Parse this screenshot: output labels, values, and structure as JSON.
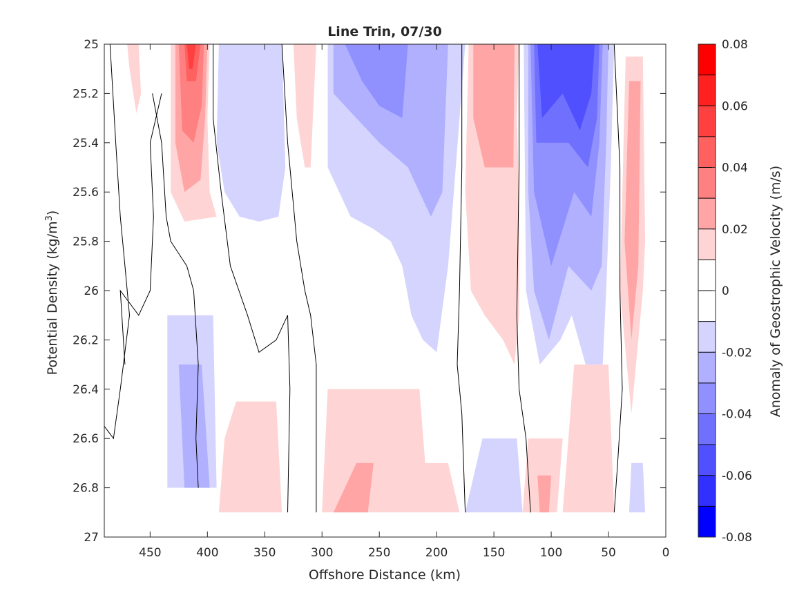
{
  "chart_data": {
    "type": "contour",
    "title": "Line Trin, 07/30",
    "xlabel": "Offshore Distance (km)",
    "ylabel_main": "Potential Density (kg/m",
    "ylabel_sup": "3",
    "ylabel_close": ")",
    "x_reversed": true,
    "xlim": [
      0,
      490
    ],
    "ylim": [
      25,
      27
    ],
    "y_reversed": true,
    "grid": false,
    "x_ticks": [
      450,
      400,
      350,
      300,
      250,
      200,
      150,
      100,
      50,
      0
    ],
    "x_tick_labels": [
      "450",
      "400",
      "350",
      "300",
      "250",
      "200",
      "150",
      "100",
      "50",
      "0"
    ],
    "y_ticks": [
      25,
      25.2,
      25.4,
      25.6,
      25.8,
      26,
      26.2,
      26.4,
      26.6,
      26.8,
      27
    ],
    "y_tick_labels": [
      "25",
      "25.2",
      "25.4",
      "25.6",
      "25.8",
      "26",
      "26.2",
      "26.4",
      "26.6",
      "26.8",
      "27"
    ],
    "colorbar": {
      "label": "Anomaly of Geostrophic Velocity (m/s)",
      "range": [
        -0.08,
        0.08
      ],
      "ticks": [
        0.08,
        0.06,
        0.04,
        0.02,
        0,
        -0.02,
        -0.04,
        -0.06,
        -0.08
      ],
      "tick_labels": [
        "0.08",
        "0.06",
        "0.04",
        "0.02",
        "0",
        "-0.02",
        "-0.04",
        "-0.06",
        "-0.08"
      ],
      "levels": [
        0.08,
        0.07,
        0.06,
        0.05,
        0.04,
        0.03,
        0.02,
        0.01,
        0,
        -0.01,
        -0.02,
        -0.03,
        -0.04,
        -0.05,
        -0.06,
        -0.07,
        -0.08
      ],
      "colors_top_to_bottom": [
        "#ff0000",
        "#ff2020",
        "#ff4040",
        "#ff6060",
        "#ff8080",
        "#ffa5a5",
        "#ffd4d4",
        "#ffffff",
        "#ffffff",
        "#d4d4ff",
        "#b0b0ff",
        "#9090ff",
        "#7070ff",
        "#5050ff",
        "#3030ff",
        "#0000ff"
      ],
      "colormap": "red-white-blue"
    },
    "fill_regions": [
      {
        "level": 0.015,
        "color": "#ffd4d4",
        "points": [
          [
            470,
            25
          ],
          [
            460,
            25
          ],
          [
            458,
            25.2
          ],
          [
            462,
            25.28
          ],
          [
            468,
            25.1
          ]
        ]
      },
      {
        "level": 0.015,
        "color": "#ffd4d4",
        "points": [
          [
            432,
            25
          ],
          [
            398,
            25
          ],
          [
            400,
            25.3
          ],
          [
            398,
            25.6
          ],
          [
            392,
            25.7
          ],
          [
            420,
            25.72
          ],
          [
            432,
            25.6
          ]
        ]
      },
      {
        "level": 0.03,
        "color": "#ffa5a5",
        "points": [
          [
            428,
            25
          ],
          [
            400,
            25
          ],
          [
            402,
            25.3
          ],
          [
            406,
            25.55
          ],
          [
            420,
            25.6
          ],
          [
            428,
            25.4
          ]
        ]
      },
      {
        "level": 0.045,
        "color": "#ff8080",
        "points": [
          [
            425,
            25
          ],
          [
            403,
            25
          ],
          [
            405,
            25.25
          ],
          [
            412,
            25.4
          ],
          [
            422,
            25.35
          ]
        ]
      },
      {
        "level": 0.06,
        "color": "#ff6060",
        "points": [
          [
            420,
            25
          ],
          [
            406,
            25
          ],
          [
            410,
            25.15
          ],
          [
            418,
            25.15
          ]
        ]
      },
      {
        "level": 0.07,
        "color": "#ff4040",
        "points": [
          [
            418,
            25
          ],
          [
            410,
            25
          ],
          [
            413,
            25.1
          ],
          [
            416,
            25.1
          ]
        ]
      },
      {
        "level": -0.015,
        "color": "#d4d4ff",
        "points": [
          [
            390,
            25
          ],
          [
            335,
            25
          ],
          [
            332,
            25.5
          ],
          [
            338,
            25.7
          ],
          [
            355,
            25.72
          ],
          [
            372,
            25.7
          ],
          [
            385,
            25.6
          ],
          [
            392,
            25.4
          ]
        ]
      },
      {
        "level": 0.015,
        "color": "#ffd4d4",
        "points": [
          [
            325,
            25
          ],
          [
            305,
            25
          ],
          [
            308,
            25.3
          ],
          [
            310,
            25.5
          ],
          [
            315,
            25.5
          ],
          [
            322,
            25.3
          ]
        ]
      },
      {
        "level": -0.015,
        "color": "#d4d4ff",
        "points": [
          [
            295,
            25
          ],
          [
            175,
            25
          ],
          [
            185,
            25.6
          ],
          [
            190,
            25.9
          ],
          [
            200,
            26.25
          ],
          [
            212,
            26.2
          ],
          [
            222,
            26.1
          ],
          [
            230,
            25.9
          ],
          [
            240,
            25.8
          ],
          [
            255,
            25.75
          ],
          [
            275,
            25.7
          ],
          [
            295,
            25.5
          ]
        ]
      },
      {
        "level": -0.03,
        "color": "#b0b0ff",
        "points": [
          [
            290,
            25
          ],
          [
            190,
            25
          ],
          [
            195,
            25.6
          ],
          [
            205,
            25.7
          ],
          [
            225,
            25.5
          ],
          [
            250,
            25.4
          ],
          [
            270,
            25.3
          ],
          [
            290,
            25.2
          ]
        ]
      },
      {
        "level": -0.045,
        "color": "#9090ff",
        "points": [
          [
            280,
            25
          ],
          [
            225,
            25
          ],
          [
            230,
            25.3
          ],
          [
            250,
            25.25
          ],
          [
            265,
            25.15
          ]
        ]
      },
      {
        "level": 0.015,
        "color": "#ffd4d4",
        "points": [
          [
            172,
            25
          ],
          [
            128,
            25
          ],
          [
            130,
            25.3
          ],
          [
            128,
            25.6
          ],
          [
            128,
            26.1
          ],
          [
            132,
            26.3
          ],
          [
            142,
            26.2
          ],
          [
            158,
            26.1
          ],
          [
            170,
            26.0
          ],
          [
            175,
            25.6
          ]
        ]
      },
      {
        "level": 0.03,
        "color": "#ffa5a5",
        "points": [
          [
            168,
            25
          ],
          [
            132,
            25
          ],
          [
            133,
            25.5
          ],
          [
            145,
            25.5
          ],
          [
            158,
            25.5
          ],
          [
            168,
            25.3
          ]
        ]
      },
      {
        "level": -0.015,
        "color": "#d4d4ff",
        "points": [
          [
            124,
            25
          ],
          [
            45,
            25
          ],
          [
            48,
            25.5
          ],
          [
            52,
            26.0
          ],
          [
            55,
            26.3
          ],
          [
            70,
            26.3
          ],
          [
            82,
            26.1
          ],
          [
            92,
            26.2
          ],
          [
            110,
            26.3
          ],
          [
            122,
            26.0
          ]
        ]
      },
      {
        "level": -0.03,
        "color": "#b0b0ff",
        "points": [
          [
            120,
            25
          ],
          [
            50,
            25
          ],
          [
            52,
            25.4
          ],
          [
            56,
            25.9
          ],
          [
            65,
            26.0
          ],
          [
            85,
            25.9
          ],
          [
            102,
            26.2
          ],
          [
            115,
            26.0
          ],
          [
            120,
            25.6
          ]
        ]
      },
      {
        "level": -0.045,
        "color": "#9090ff",
        "points": [
          [
            118,
            25
          ],
          [
            55,
            25
          ],
          [
            58,
            25.4
          ],
          [
            65,
            25.7
          ],
          [
            80,
            25.6
          ],
          [
            100,
            25.9
          ],
          [
            115,
            25.6
          ]
        ]
      },
      {
        "level": -0.06,
        "color": "#7070ff",
        "points": [
          [
            115,
            25
          ],
          [
            58,
            25
          ],
          [
            60,
            25.3
          ],
          [
            68,
            25.5
          ],
          [
            85,
            25.4
          ],
          [
            104,
            25.4
          ],
          [
            113,
            25.4
          ]
        ]
      },
      {
        "level": -0.07,
        "color": "#5050ff",
        "points": [
          [
            112,
            25
          ],
          [
            62,
            25
          ],
          [
            65,
            25.2
          ],
          [
            75,
            25.35
          ],
          [
            90,
            25.2
          ],
          [
            108,
            25.3
          ]
        ]
      },
      {
        "level": 0.015,
        "color": "#ffd4d4",
        "points": [
          [
            35,
            25.05
          ],
          [
            20,
            25.05
          ],
          [
            18,
            25.8
          ],
          [
            20,
            26.0
          ],
          [
            30,
            26.5
          ],
          [
            40,
            26.0
          ]
        ]
      },
      {
        "level": 0.03,
        "color": "#ffa5a5",
        "points": [
          [
            32,
            25.15
          ],
          [
            22,
            25.15
          ],
          [
            24,
            25.9
          ],
          [
            30,
            26.2
          ],
          [
            36,
            25.8
          ]
        ]
      },
      {
        "level": -0.015,
        "color": "#d4d4ff",
        "points": [
          [
            435,
            26.1
          ],
          [
            395,
            26.1
          ],
          [
            392,
            26.8
          ],
          [
            435,
            26.8
          ]
        ]
      },
      {
        "level": -0.03,
        "color": "#b0b0ff",
        "points": [
          [
            425,
            26.3
          ],
          [
            405,
            26.3
          ],
          [
            398,
            26.8
          ],
          [
            420,
            26.8
          ]
        ]
      },
      {
        "level": 0.015,
        "color": "#ffd4d4",
        "points": [
          [
            375,
            26.45
          ],
          [
            340,
            26.45
          ],
          [
            335,
            26.9
          ],
          [
            390,
            26.9
          ],
          [
            385,
            26.6
          ]
        ]
      },
      {
        "level": 0.015,
        "color": "#ffd4d4",
        "points": [
          [
            295,
            26.4
          ],
          [
            215,
            26.4
          ],
          [
            210,
            26.7
          ],
          [
            190,
            26.7
          ],
          [
            180,
            26.9
          ],
          [
            300,
            26.9
          ]
        ]
      },
      {
        "level": 0.03,
        "color": "#ffa5a5",
        "points": [
          [
            270,
            26.7
          ],
          [
            255,
            26.7
          ],
          [
            260,
            26.9
          ],
          [
            290,
            26.9
          ]
        ]
      },
      {
        "level": -0.015,
        "color": "#d4d4ff",
        "points": [
          [
            160,
            26.6
          ],
          [
            130,
            26.6
          ],
          [
            125,
            26.9
          ],
          [
            175,
            26.9
          ]
        ]
      },
      {
        "level": 0.015,
        "color": "#ffd4d4",
        "points": [
          [
            120,
            26.6
          ],
          [
            90,
            26.6
          ],
          [
            95,
            26.9
          ],
          [
            125,
            26.9
          ]
        ]
      },
      {
        "level": 0.03,
        "color": "#ffa5a5",
        "points": [
          [
            112,
            26.75
          ],
          [
            100,
            26.75
          ],
          [
            102,
            26.9
          ],
          [
            110,
            26.9
          ]
        ]
      },
      {
        "level": 0.015,
        "color": "#ffd4d4",
        "points": [
          [
            80,
            26.3
          ],
          [
            50,
            26.3
          ],
          [
            45,
            26.9
          ],
          [
            90,
            26.9
          ]
        ]
      },
      {
        "level": -0.015,
        "color": "#d4d4ff",
        "points": [
          [
            30,
            26.7
          ],
          [
            20,
            26.7
          ],
          [
            18,
            26.9
          ],
          [
            32,
            26.9
          ]
        ]
      }
    ],
    "zero_contours": [
      [
        [
          485,
          25
        ],
        [
          480,
          25.4
        ],
        [
          476,
          25.7
        ],
        [
          472,
          25.9
        ],
        [
          468,
          26.1
        ],
        [
          476,
          26.4
        ],
        [
          482,
          26.6
        ],
        [
          490,
          26.55
        ]
      ],
      [
        [
          448,
          25.2
        ],
        [
          440,
          25.4
        ],
        [
          436,
          25.7
        ],
        [
          432,
          25.8
        ],
        [
          418,
          25.9
        ],
        [
          412,
          26.0
        ],
        [
          408,
          26.3
        ],
        [
          410,
          26.6
        ],
        [
          408,
          26.8
        ]
      ],
      [
        [
          440,
          25.2
        ],
        [
          450,
          25.4
        ],
        [
          447,
          25.7
        ],
        [
          450,
          26.0
        ],
        [
          460,
          26.1
        ],
        [
          476,
          26.0
        ],
        [
          472,
          26.3
        ]
      ],
      [
        [
          395,
          25
        ],
        [
          395,
          25.3
        ],
        [
          388,
          25.6
        ],
        [
          380,
          25.9
        ],
        [
          365,
          26.1
        ],
        [
          355,
          26.25
        ],
        [
          340,
          26.2
        ],
        [
          330,
          26.1
        ],
        [
          328,
          26.4
        ],
        [
          330,
          26.9
        ]
      ],
      [
        [
          335,
          25
        ],
        [
          330,
          25.4
        ],
        [
          322,
          25.8
        ],
        [
          315,
          26.0
        ],
        [
          310,
          26.1
        ],
        [
          305,
          26.3
        ],
        [
          305,
          26.9
        ]
      ],
      [
        [
          178,
          25
        ],
        [
          178,
          25.5
        ],
        [
          180,
          26.0
        ],
        [
          182,
          26.3
        ],
        [
          178,
          26.5
        ],
        [
          175,
          26.9
        ]
      ],
      [
        [
          128,
          25
        ],
        [
          128,
          25.5
        ],
        [
          130,
          26.1
        ],
        [
          128,
          26.4
        ],
        [
          122,
          26.6
        ],
        [
          118,
          26.9
        ]
      ],
      [
        [
          45,
          25
        ],
        [
          40,
          25.5
        ],
        [
          40,
          26.0
        ],
        [
          38,
          26.4
        ],
        [
          42,
          26.7
        ],
        [
          45,
          26.9
        ]
      ]
    ]
  }
}
